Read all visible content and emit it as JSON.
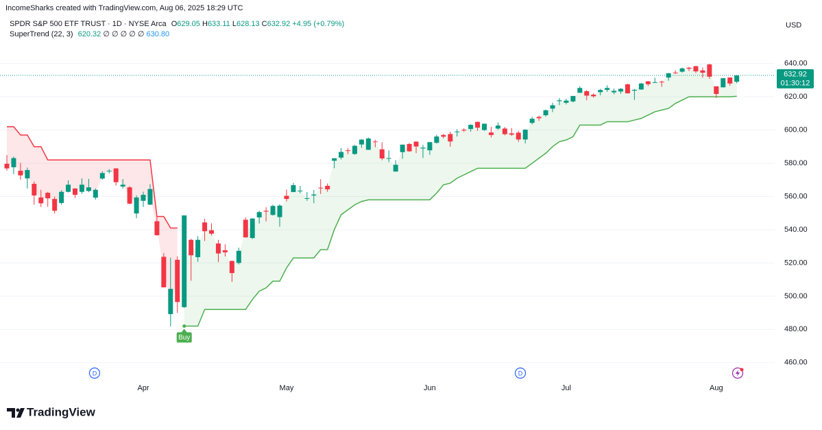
{
  "attribution": "IncomeSharks created with TradingView.com, Aug 06, 2025 18:29 UTC",
  "brand": "TradingView",
  "chart_data": {
    "type": "candlestick",
    "symbol": "SPDR S&P 500 ETF TRUST · 1D · NYSE Arca",
    "ohlc_letters": [
      "O",
      "H",
      "L",
      "C"
    ],
    "change": "+4.95 (+0.79%)",
    "currency": "USD",
    "countdown": "01:30:12",
    "buy_label": "Buy",
    "event_markers": [
      "D",
      "D"
    ],
    "up_color": "#089981",
    "down_color": "#f23645",
    "categories": [
      null,
      null,
      null,
      null,
      null,
      null,
      null,
      null,
      null,
      null,
      null,
      null,
      null,
      null,
      null,
      null,
      null,
      null,
      null,
      null,
      "Apr",
      null,
      null,
      null,
      null,
      null,
      null,
      null,
      null,
      null,
      null,
      null,
      null,
      null,
      null,
      null,
      null,
      null,
      null,
      null,
      null,
      "May",
      null,
      null,
      null,
      null,
      null,
      null,
      null,
      null,
      null,
      null,
      null,
      null,
      null,
      null,
      null,
      null,
      null,
      null,
      null,
      null,
      "Jun",
      null,
      null,
      null,
      null,
      null,
      null,
      null,
      null,
      null,
      null,
      null,
      null,
      null,
      null,
      null,
      null,
      null,
      null,
      null,
      "Jul",
      null,
      null,
      null,
      null,
      null,
      null,
      null,
      null,
      null,
      null,
      null,
      null,
      null,
      null,
      null,
      null,
      null,
      null,
      null,
      null,
      null,
      "Aug",
      null,
      null,
      null
    ],
    "open": [
      579.7,
      577.6,
      575.5,
      570.9,
      567.6,
      559.4,
      562.2,
      558.5,
      556.1,
      562.8,
      564.8,
      562.8,
      563.3,
      559.3,
      570.8,
      575.3,
      576.9,
      566.0,
      565.5,
      549.8,
      557.4,
      555.1,
      545.1,
      523.7,
      489.2,
      521.9,
      493.4,
      533.9,
      523.5,
      544.4,
      539.7,
      531.7,
      527.6,
      521.2,
      520.0,
      546.0,
      535.0,
      547.4,
      551.4,
      548.9,
      547.6,
      560.4,
      562.7,
      563.2,
      559.0,
      560.6,
      565.3,
      566.4,
      581.5,
      583.4,
      587.8,
      585.6,
      591.3,
      588.1,
      593.1,
      588.4,
      582.7,
      575.0,
      586.7,
      591.6,
      593.0,
      588.9,
      587.8,
      592.3,
      597.0,
      597.6,
      598.7,
      600.2,
      600.6,
      604.9,
      600.0,
      598.5,
      600.9,
      600.9,
      598.0,
      598.4,
      594.3,
      604.3,
      607.9,
      608.9,
      612.9,
      617.4,
      616.4,
      617.2,
      622.4,
      623.4,
      621.3,
      622.8,
      624.2,
      622.7,
      623.2,
      627.5,
      623.7,
      624.4,
      629.3,
      628.8,
      629.1,
      631.6,
      634.6,
      635.1,
      637.5,
      638.4,
      635.9,
      639.5,
      626.3,
      625.7,
      631.6,
      629.05
    ],
    "high": [
      584.9,
      584.0,
      580.2,
      577.4,
      569.0,
      564.0,
      562.8,
      559.9,
      563.8,
      569.7,
      565.0,
      570.9,
      570.6,
      564.9,
      575.2,
      576.4,
      577.0,
      570.5,
      566.3,
      560.7,
      562.9,
      567.4,
      547.9,
      525.9,
      523.2,
      524.0,
      548.6,
      534.5,
      536.1,
      546.6,
      543.9,
      533.9,
      531.2,
      521.4,
      529.2,
      547.4,
      547.0,
      551.4,
      553.5,
      555.0,
      555.3,
      564.1,
      568.2,
      566.4,
      562.7,
      563.9,
      570.4,
      567.8,
      583.0,
      589.1,
      589.0,
      591.0,
      594.5,
      595.5,
      594.1,
      592.6,
      587.8,
      581.8,
      591.3,
      592.2,
      593.2,
      591.1,
      592.8,
      597.1,
      597.7,
      599.0,
      600.5,
      601.0,
      603.5,
      605.1,
      603.8,
      601.9,
      604.5,
      601.8,
      601.2,
      599.5,
      600.5,
      607.9,
      608.6,
      612.3,
      616.4,
      619.2,
      618.8,
      620.5,
      626.3,
      624.0,
      622.1,
      624.7,
      626.9,
      624.9,
      625.2,
      627.9,
      624.7,
      628.4,
      629.5,
      631.5,
      629.7,
      634.2,
      636.0,
      637.6,
      638.0,
      638.7,
      637.7,
      639.9,
      626.3,
      631.2,
      631.7,
      633.11
    ],
    "low": [
      575.6,
      573.4,
      570.1,
      564.8,
      555.1,
      553.7,
      553.8,
      549.7,
      555.0,
      562.4,
      559.1,
      561.6,
      562.6,
      558.0,
      570.1,
      573.7,
      566.6,
      564.7,
      555.3,
      546.9,
      553.7,
      554.8,
      536.4,
      505.3,
      481.8,
      489.9,
      493.0,
      509.3,
      520.7,
      533.2,
      536.5,
      520.5,
      523.9,
      508.6,
      519.1,
      535.2,
      534.4,
      543.7,
      545.0,
      548.5,
      541.8,
      557.0,
      562.6,
      562.0,
      557.4,
      556.0,
      561.5,
      562.8,
      577.0,
      582.3,
      585.5,
      585.1,
      589.3,
      588.0,
      589.6,
      581.8,
      580.7,
      575.0,
      582.7,
      586.9,
      586.1,
      583.2,
      585.1,
      591.9,
      595.0,
      590.0,
      596.1,
      598.9,
      599.0,
      599.5,
      599.5,
      595.5,
      600.2,
      596.8,
      596.5,
      592.9,
      591.9,
      603.4,
      605.5,
      608.0,
      610.8,
      615.0,
      615.4,
      616.6,
      622.4,
      617.9,
      619.5,
      620.9,
      623.0,
      621.5,
      621.8,
      622.0,
      618.1,
      624.2,
      626.5,
      628.3,
      626.0,
      629.7,
      633.8,
      634.6,
      635.5,
      634.3,
      631.5,
      630.8,
      619.3,
      625.6,
      626.6,
      628.13
    ],
    "close": [
      576.9,
      583.1,
      572.7,
      575.9,
      560.6,
      555.9,
      558.9,
      551.4,
      562.8,
      567.1,
      561.0,
      567.1,
      565.5,
      564.0,
      574.1,
      575.5,
      568.6,
      567.1,
      555.7,
      559.4,
      561.0,
      564.5,
      536.7,
      505.3,
      504.4,
      496.5,
      548.6,
      524.6,
      533.9,
      539.1,
      537.6,
      525.7,
      526.4,
      513.9,
      527.3,
      535.4,
      546.7,
      550.6,
      550.9,
      554.3,
      554.5,
      558.5,
      566.8,
      563.5,
      559.0,
      561.2,
      565.1,
      564.3,
      583.0,
      586.8,
      587.6,
      590.5,
      594.2,
      594.9,
      592.9,
      582.9,
      583.1,
      579.1,
      591.2,
      587.2,
      590.1,
      589.4,
      592.7,
      596.1,
      596.0,
      593.1,
      599.1,
      599.7,
      603.1,
      601.4,
      603.8,
      597.0,
      602.7,
      597.5,
      597.2,
      594.3,
      600.2,
      606.8,
      607.1,
      611.9,
      614.9,
      617.9,
      617.7,
      620.5,
      625.3,
      620.7,
      620.3,
      624.1,
      625.3,
      623.6,
      624.8,
      622.1,
      624.2,
      628.0,
      627.6,
      628.8,
      628.9,
      634.2,
      634.4,
      637.1,
      636.9,
      635.3,
      634.5,
      632.1,
      621.7,
      631.2,
      628.0,
      632.92
    ],
    "supertrend": {
      "name": "SuperTrend (22, 3)",
      "up_color": "#4caf50",
      "down_color": "#f23645",
      "empty": "∅ ∅ ∅ ∅ ∅",
      "extra": "630.80",
      "down": [
        602,
        602,
        597,
        597,
        590,
        590,
        582,
        582,
        582,
        582,
        582,
        582,
        582,
        582,
        582,
        582,
        582,
        582,
        582,
        582,
        582,
        582,
        548,
        548,
        541,
        541,
        null,
        null,
        null,
        null,
        null,
        null,
        null,
        null,
        null,
        null,
        null,
        null,
        null,
        null,
        null,
        null,
        null,
        null,
        null,
        null,
        null,
        null,
        null,
        null,
        null,
        null,
        null,
        null,
        null,
        null,
        null,
        null,
        null,
        null,
        null,
        null,
        null,
        null,
        null,
        null,
        null,
        null,
        null,
        null,
        null,
        null,
        null,
        null,
        null,
        null,
        null,
        null,
        null,
        null,
        null,
        null,
        null,
        null,
        null,
        null,
        null,
        null,
        null,
        null,
        null,
        null,
        null,
        null,
        null,
        null,
        null,
        null,
        null,
        null,
        null,
        null,
        null,
        null,
        null,
        null,
        null,
        null
      ],
      "up": [
        null,
        null,
        null,
        null,
        null,
        null,
        null,
        null,
        null,
        null,
        null,
        null,
        null,
        null,
        null,
        null,
        null,
        null,
        null,
        null,
        null,
        null,
        null,
        null,
        null,
        null,
        482,
        482,
        482,
        492,
        492,
        492,
        492,
        492,
        492,
        492,
        498,
        503,
        505,
        509,
        509,
        517,
        523,
        523,
        523,
        523,
        528,
        528,
        540,
        549,
        552,
        555,
        557,
        558,
        558,
        558,
        558,
        558,
        558,
        558,
        558,
        558,
        558,
        562,
        567,
        568,
        571,
        573,
        575,
        577,
        577,
        577,
        577,
        577,
        577,
        577,
        577,
        580,
        583,
        586,
        590,
        593,
        594,
        596,
        603,
        603,
        603,
        603,
        605,
        605,
        605,
        605,
        606,
        607,
        609,
        611,
        612,
        613,
        616,
        618,
        620,
        620,
        620,
        620,
        620,
        620,
        620,
        620.32
      ]
    },
    "ylim": [
      450,
      670
    ],
    "yticks": [
      {
        "value": 460,
        "label": "460.00"
      },
      {
        "value": 480,
        "label": "480.00"
      },
      {
        "value": 500,
        "label": "500.00"
      },
      {
        "value": 520,
        "label": "520.00"
      },
      {
        "value": 540,
        "label": "540.00"
      },
      {
        "value": 560,
        "label": "560.00"
      },
      {
        "value": 580,
        "label": "580.00"
      },
      {
        "value": 600,
        "label": "600.00"
      },
      {
        "value": 620,
        "label": "620.00"
      },
      {
        "value": 640,
        "label": "640.00"
      }
    ],
    "grid": true
  }
}
